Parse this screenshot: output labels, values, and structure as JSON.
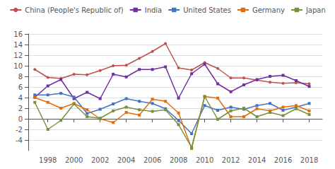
{
  "chart_data": {
    "type": "line",
    "x": [
      1997,
      1998,
      1999,
      2000,
      2001,
      2002,
      2003,
      2004,
      2005,
      2006,
      2007,
      2008,
      2009,
      2010,
      2011,
      2012,
      2013,
      2014,
      2015,
      2016,
      2017,
      2018
    ],
    "series": [
      {
        "name": "China (People's Republic of)",
        "color": "#C0504D",
        "marker": "circle",
        "values": [
          9.3,
          7.8,
          7.6,
          8.4,
          8.3,
          9.1,
          10.0,
          10.1,
          11.4,
          12.7,
          14.2,
          9.6,
          9.2,
          10.6,
          9.5,
          7.7,
          7.7,
          7.3,
          6.9,
          6.7,
          6.8,
          6.6
        ]
      },
      {
        "name": "India",
        "color": "#7030A0",
        "marker": "square",
        "values": [
          4.05,
          6.2,
          7.4,
          3.8,
          5.0,
          3.8,
          8.4,
          7.9,
          9.3,
          9.3,
          9.8,
          3.9,
          8.5,
          10.3,
          6.6,
          5.1,
          6.4,
          7.4,
          8.0,
          8.2,
          7.2,
          6.1
        ]
      },
      {
        "name": "United States",
        "color": "#4472C4",
        "marker": "square",
        "values": [
          4.5,
          4.5,
          4.8,
          4.1,
          1.0,
          1.8,
          2.8,
          3.8,
          3.3,
          2.9,
          1.9,
          -0.3,
          -2.8,
          2.5,
          1.6,
          2.2,
          1.8,
          2.5,
          2.9,
          1.6,
          2.2,
          2.9
        ]
      },
      {
        "name": "Germany",
        "color": "#E36C09",
        "marker": "square",
        "values": [
          4.0,
          3.1,
          2.0,
          2.9,
          1.7,
          0.0,
          -0.7,
          1.2,
          0.7,
          3.7,
          3.3,
          1.1,
          -5.6,
          4.2,
          3.9,
          0.4,
          0.4,
          1.9,
          1.5,
          2.2,
          2.5,
          1.5
        ]
      },
      {
        "name": "Japan",
        "color": "#76923C",
        "marker": "square",
        "values": [
          3.1,
          -2.0,
          -0.3,
          2.8,
          0.4,
          0.1,
          1.5,
          2.2,
          1.7,
          1.4,
          1.7,
          -1.1,
          -5.4,
          4.2,
          -0.1,
          1.5,
          2.0,
          0.4,
          1.2,
          0.6,
          1.9,
          0.8
        ]
      }
    ],
    "xlim": [
      1996.5,
      2019.0
    ],
    "xticks": [
      1998,
      2000,
      2002,
      2004,
      2006,
      2008,
      2010,
      2012,
      2014,
      2016,
      2018
    ],
    "ylim": [
      -6,
      16
    ],
    "yticks": [
      -4,
      -2,
      0,
      2,
      4,
      6,
      8,
      10,
      12,
      14,
      16
    ],
    "grid": true,
    "legend": "top"
  }
}
